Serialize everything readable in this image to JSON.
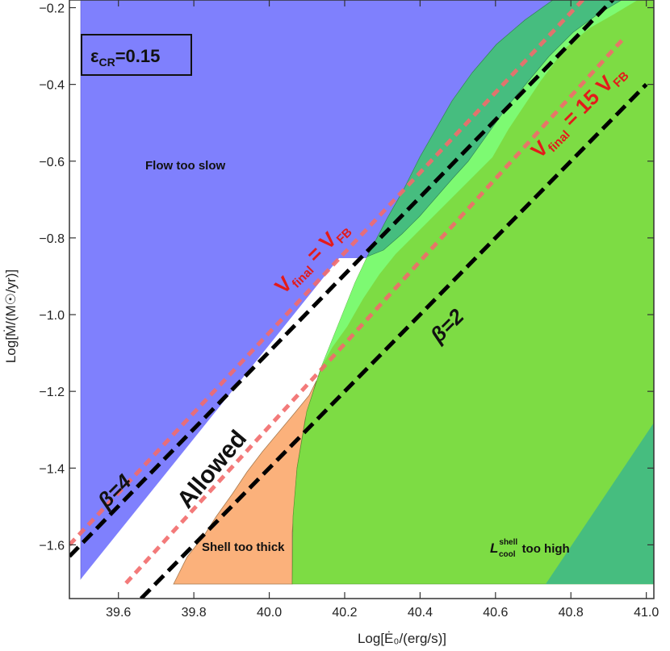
{
  "chart_data": {
    "type": "area",
    "title": "",
    "xlabel": "Log[Ė₀/(erg/s)]",
    "ylabel": "Log[Ṁ/(M☉/yr)]",
    "xlim": [
      39.47,
      41.02
    ],
    "ylim": [
      -1.74,
      -0.18
    ],
    "x_ticks": [
      "39.6",
      "39.8",
      "40.0",
      "40.2",
      "40.4",
      "40.6",
      "40.8",
      "41.0"
    ],
    "y_ticks": [
      "-0.2",
      "-0.4",
      "-0.6",
      "-0.8",
      "-1.0",
      "-1.2",
      "-1.4",
      "-1.6"
    ],
    "grid": false,
    "inset_label": "ε_CR=0.15",
    "regions": [
      {
        "name": "Flow too slow",
        "color": "#7f80fd"
      },
      {
        "name": "Allowed",
        "color": "#ffffff"
      },
      {
        "name": "Shell too thick",
        "color": "#fbb17b"
      },
      {
        "name": "L_cool^shell too high",
        "color": "#7ddc44"
      },
      {
        "name": "overlap",
        "color": "#46bd7f"
      },
      {
        "name": "overlap-light",
        "color": "#7dfa72"
      }
    ],
    "lines": [
      {
        "label": "β=4",
        "style": "black-dashed",
        "x": [
          39.47,
          40.94
        ],
        "y": [
          -1.63,
          -0.15
        ]
      },
      {
        "label": "β=2",
        "style": "black-dashed",
        "x": [
          39.66,
          41.0
        ],
        "y": [
          -1.74,
          -0.4
        ]
      },
      {
        "label": "V_final = V_FB",
        "style": "red-dashed",
        "x": [
          39.47,
          40.86
        ],
        "y": [
          -1.6,
          -0.15
        ]
      },
      {
        "label": "V_final = 15 V_FB",
        "style": "red-dashed",
        "x": [
          39.62,
          40.94
        ],
        "y": [
          -1.7,
          -0.28
        ]
      }
    ],
    "labels": {
      "flow_too_slow": "Flow too slow",
      "allowed": "Allowed",
      "shell_too_thick": "Shell too thick",
      "lcool_main": "L",
      "lcool_sup": "shell",
      "lcool_sub": "cool",
      "lcool_rest": "too high",
      "beta4": "β=4",
      "beta2": "β=2",
      "vfb_v": "V",
      "vfb_sub": "final",
      "vfb_eq": " = V",
      "vfb_sub2": "FB",
      "v15_v": "V",
      "v15_sub": "final",
      "v15_eq": " = 15 V",
      "v15_sub2": "FB",
      "eps_main": "ε",
      "eps_sub": "CR",
      "eps_val": "=0.15"
    }
  }
}
